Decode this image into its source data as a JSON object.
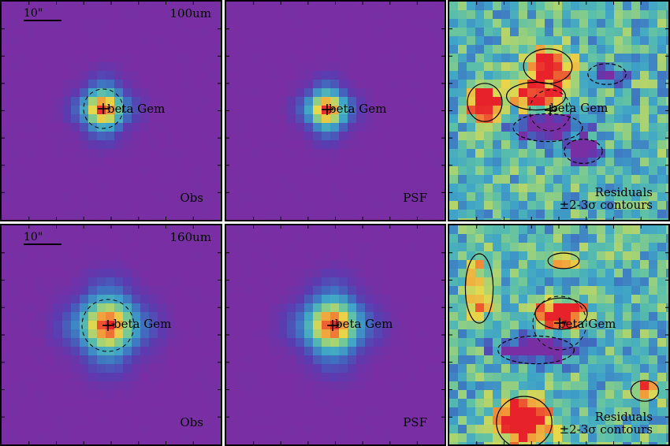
{
  "figure": {
    "star_name": "beta Gem",
    "scale_bar_label": "10\"",
    "rows": [
      {
        "band_label": "100um",
        "obs_label": "Obs",
        "psf_label": "PSF",
        "residual_label_line1": "Residuals",
        "residual_label_line2": "±2-3σ contours"
      },
      {
        "band_label": "160um",
        "obs_label": "Obs",
        "psf_label": "PSF",
        "residual_label_line1": "Residuals",
        "residual_label_line2": "±2-3σ contours"
      }
    ]
  },
  "colors": {
    "background_purple": "#7a2ea3",
    "core_red": "#e8222a",
    "contour_line": "#000000"
  }
}
